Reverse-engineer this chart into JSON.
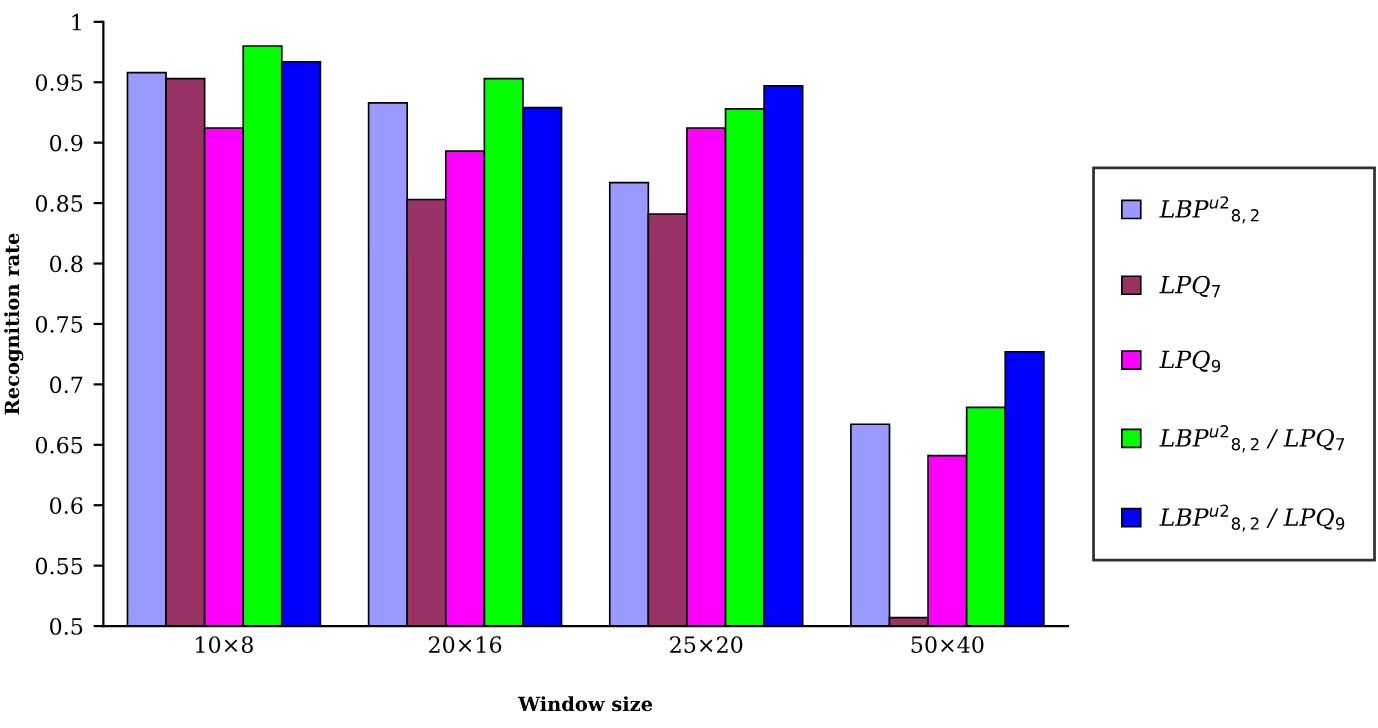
{
  "chart_data": {
    "type": "bar",
    "xlabel": "Window size",
    "ylabel": "Recognition rate",
    "categories": [
      "10×8",
      "20×16",
      "25×20",
      "50×40"
    ],
    "series": [
      {
        "name": "LBP$^{u2}$$_{8,2}$",
        "color": "#9999ff",
        "values": [
          0.958,
          0.933,
          0.867,
          0.667
        ]
      },
      {
        "name": "LPQ$_{7}$",
        "color": "#993366",
        "values": [
          0.953,
          0.853,
          0.841,
          0.507
        ]
      },
      {
        "name": "LPQ$_{9}$",
        "color": "#ff00ff",
        "values": [
          0.912,
          0.893,
          0.912,
          0.641
        ]
      },
      {
        "name": "LBP$^{u2}$$_{8,2}$ / LPQ$_{7}$",
        "color": "#00ff00",
        "values": [
          0.98,
          0.953,
          0.928,
          0.681
        ]
      },
      {
        "name": "LBP$^{u2}$$_{8,2}$ / LPQ$_{9}$",
        "color": "#0000ff",
        "values": [
          0.967,
          0.929,
          0.947,
          0.727
        ]
      }
    ],
    "ylim": [
      0.5,
      1
    ],
    "yticks": [
      0.5,
      0.55,
      0.6,
      0.65,
      0.7,
      0.75,
      0.8,
      0.85,
      0.9,
      0.95,
      1
    ],
    "grid": false,
    "legend": "right"
  }
}
